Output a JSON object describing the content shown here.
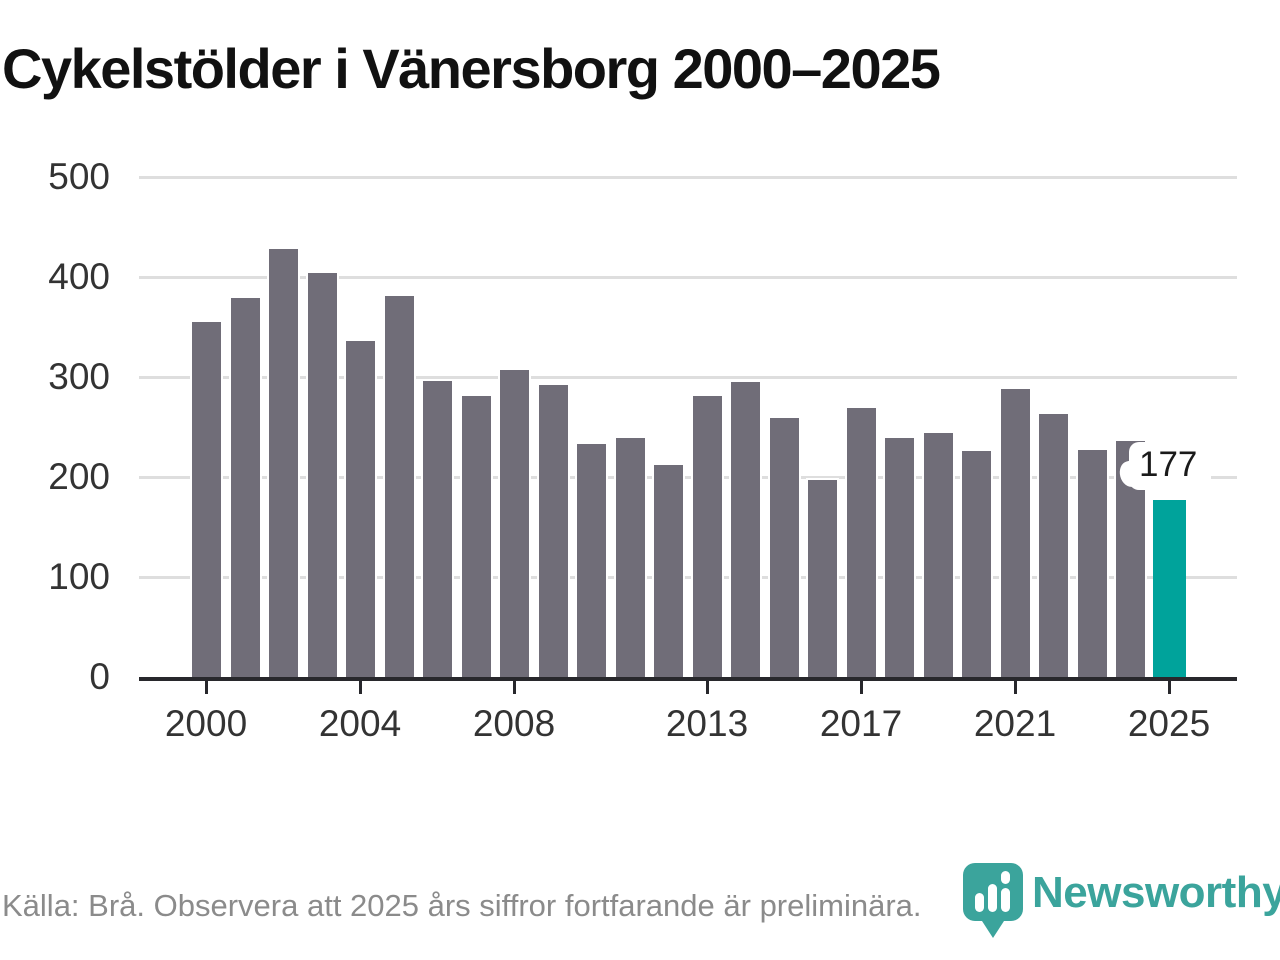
{
  "header": {
    "title": "Cykelstölder i Vänersborg 2000–2025"
  },
  "chart_data": {
    "type": "bar",
    "title": "Cykelstölder i Vänersborg 2000–2025",
    "x": [
      2000,
      2001,
      2002,
      2003,
      2004,
      2005,
      2006,
      2007,
      2008,
      2009,
      2010,
      2011,
      2012,
      2013,
      2014,
      2015,
      2016,
      2017,
      2018,
      2019,
      2020,
      2021,
      2022,
      2023,
      2024,
      2025
    ],
    "values": [
      357,
      381,
      430,
      406,
      338,
      383,
      298,
      283,
      309,
      294,
      235,
      241,
      214,
      283,
      297,
      261,
      199,
      271,
      241,
      246,
      228,
      290,
      265,
      229,
      238,
      177
    ],
    "highlight_year": 2025,
    "highlight_value": 177,
    "annotation_label": "177",
    "ylim": [
      0,
      500
    ],
    "yticks": [
      0,
      100,
      200,
      300,
      400,
      500
    ],
    "xticks": [
      2000,
      2004,
      2008,
      2013,
      2017,
      2021,
      2025
    ],
    "grid": "horizontal",
    "legend": "none",
    "colors": {
      "bar": "#706d78",
      "highlight": "#00a39b",
      "gridline": "#dedede",
      "axis": "#28282c",
      "tick_label": "#333333"
    }
  },
  "footer": {
    "source_text": "Källa: Brå. Observera att 2025 års siffror fortfarande är preliminära.",
    "logo_text": "Newsworthy",
    "logo_color": "#3ba49c"
  }
}
